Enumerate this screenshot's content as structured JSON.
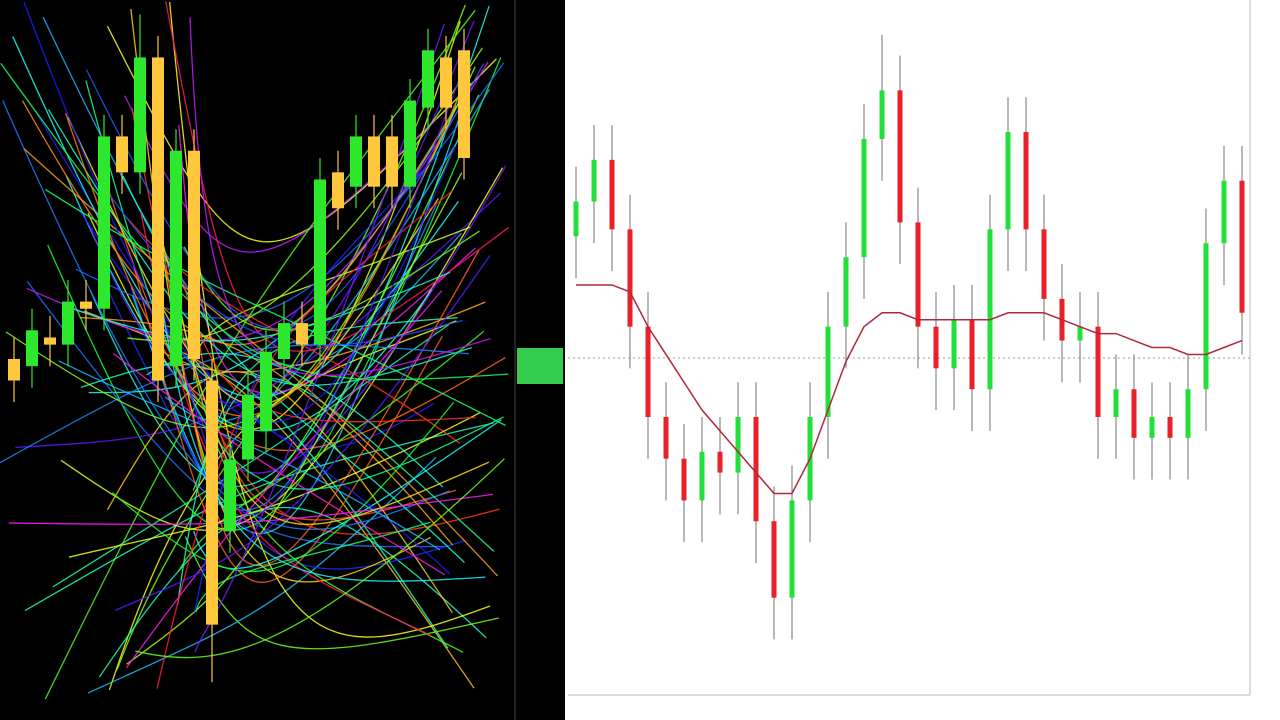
{
  "chart_data": [
    {
      "type": "candlestick",
      "background": "#000000",
      "up_color": "#2ee82e",
      "down_color": "#ffc83c",
      "ylim": [
        0,
        100
      ],
      "open": [
        50,
        49,
        53,
        52,
        58,
        57,
        81,
        76,
        92,
        49,
        79,
        47,
        26,
        36,
        40,
        50,
        55,
        52,
        76,
        74,
        81,
        81,
        74,
        85,
        92,
        93
      ],
      "close": [
        47,
        54,
        52,
        58,
        57,
        81,
        76,
        92,
        47,
        79,
        50,
        13,
        36,
        45,
        51,
        55,
        52,
        75,
        71,
        81,
        74,
        74,
        86,
        93,
        85,
        78
      ],
      "high": [
        53,
        57,
        56,
        61,
        61,
        84,
        84,
        98,
        95,
        82,
        82,
        50,
        39,
        48,
        54,
        58,
        58,
        78,
        79,
        84,
        84,
        84,
        89,
        96,
        95,
        96
      ],
      "low": [
        44,
        46,
        49,
        49,
        54,
        54,
        73,
        73,
        44,
        46,
        47,
        5,
        23,
        33,
        37,
        47,
        49,
        49,
        68,
        71,
        71,
        71,
        71,
        82,
        82,
        75
      ]
    },
    {
      "type": "candlestick",
      "background": "#ffffff",
      "up_color": "#22e03a",
      "down_color": "#e8202a",
      "ylim": [
        0,
        100
      ],
      "open": [
        66,
        71,
        77,
        67,
        53,
        40,
        34,
        28,
        35,
        32,
        40,
        25,
        14,
        28,
        40,
        53,
        63,
        80,
        87,
        68,
        53,
        47,
        54,
        44,
        67,
        81,
        67,
        57,
        51,
        53,
        40,
        44,
        37,
        40,
        37,
        44,
        65,
        74
      ],
      "close": [
        71,
        77,
        67,
        53,
        40,
        34,
        28,
        35,
        32,
        40,
        25,
        14,
        28,
        40,
        53,
        63,
        80,
        87,
        68,
        53,
        47,
        54,
        44,
        67,
        81,
        67,
        57,
        51,
        53,
        40,
        44,
        37,
        40,
        37,
        44,
        65,
        74,
        55
      ],
      "high": [
        76,
        82,
        82,
        72,
        58,
        45,
        39,
        40,
        40,
        45,
        45,
        30,
        33,
        45,
        58,
        68,
        85,
        95,
        92,
        73,
        58,
        59,
        59,
        72,
        86,
        86,
        72,
        62,
        58,
        58,
        49,
        49,
        45,
        45,
        49,
        70,
        79,
        79
      ],
      "low": [
        60,
        65,
        61,
        47,
        34,
        28,
        22,
        22,
        26,
        26,
        19,
        8,
        8,
        22,
        34,
        47,
        57,
        74,
        62,
        47,
        41,
        41,
        38,
        38,
        61,
        61,
        51,
        45,
        45,
        34,
        34,
        31,
        31,
        31,
        31,
        38,
        59,
        49
      ],
      "moving_average": {
        "color": "#b0283c",
        "values": [
          59,
          59,
          59,
          58,
          53,
          49,
          45,
          41,
          38,
          35,
          32,
          29,
          29,
          34,
          41,
          48,
          53,
          55,
          55,
          54,
          54,
          54,
          54,
          54,
          55,
          55,
          55,
          54,
          53,
          52,
          52,
          51,
          50,
          50,
          49,
          49,
          50,
          51
        ]
      }
    }
  ]
}
